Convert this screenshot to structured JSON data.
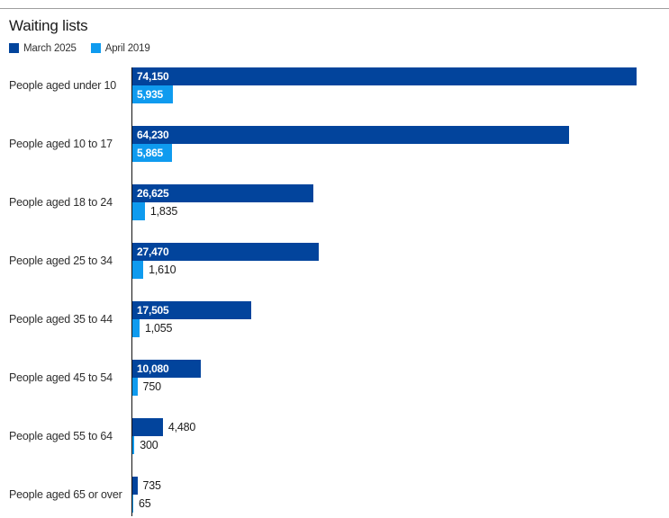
{
  "header": {
    "title": "Waiting lists"
  },
  "legend": [
    {
      "label": "March 2025",
      "color": "#02449c"
    },
    {
      "label": "April 2019",
      "color": "#0f9bef"
    }
  ],
  "colors": {
    "march_2025": "#02449c",
    "april_2019": "#0f9bef",
    "axis_line": "#111111",
    "top_rule": "#9e9e9e",
    "text": "#1a1a1a"
  },
  "chart_data": {
    "type": "bar",
    "orientation": "horizontal",
    "title": "Waiting lists",
    "categories": [
      "People aged under 10",
      "People aged 10 to 17",
      "People aged 18 to 24",
      "People aged 25 to 34",
      "People aged 35 to 44",
      "People aged 45 to 54",
      "People aged 55 to 64",
      "People aged 65 or over"
    ],
    "series": [
      {
        "name": "March 2025",
        "color": "#02449c",
        "values": [
          74150,
          64230,
          26625,
          27470,
          17505,
          10080,
          4480,
          735
        ]
      },
      {
        "name": "April 2019",
        "color": "#0f9bef",
        "values": [
          5935,
          5865,
          1835,
          1610,
          1055,
          750,
          300,
          65
        ]
      }
    ],
    "xlim": [
      0,
      74150
    ],
    "value_labels": true,
    "legend_position": "top",
    "grid": false
  }
}
